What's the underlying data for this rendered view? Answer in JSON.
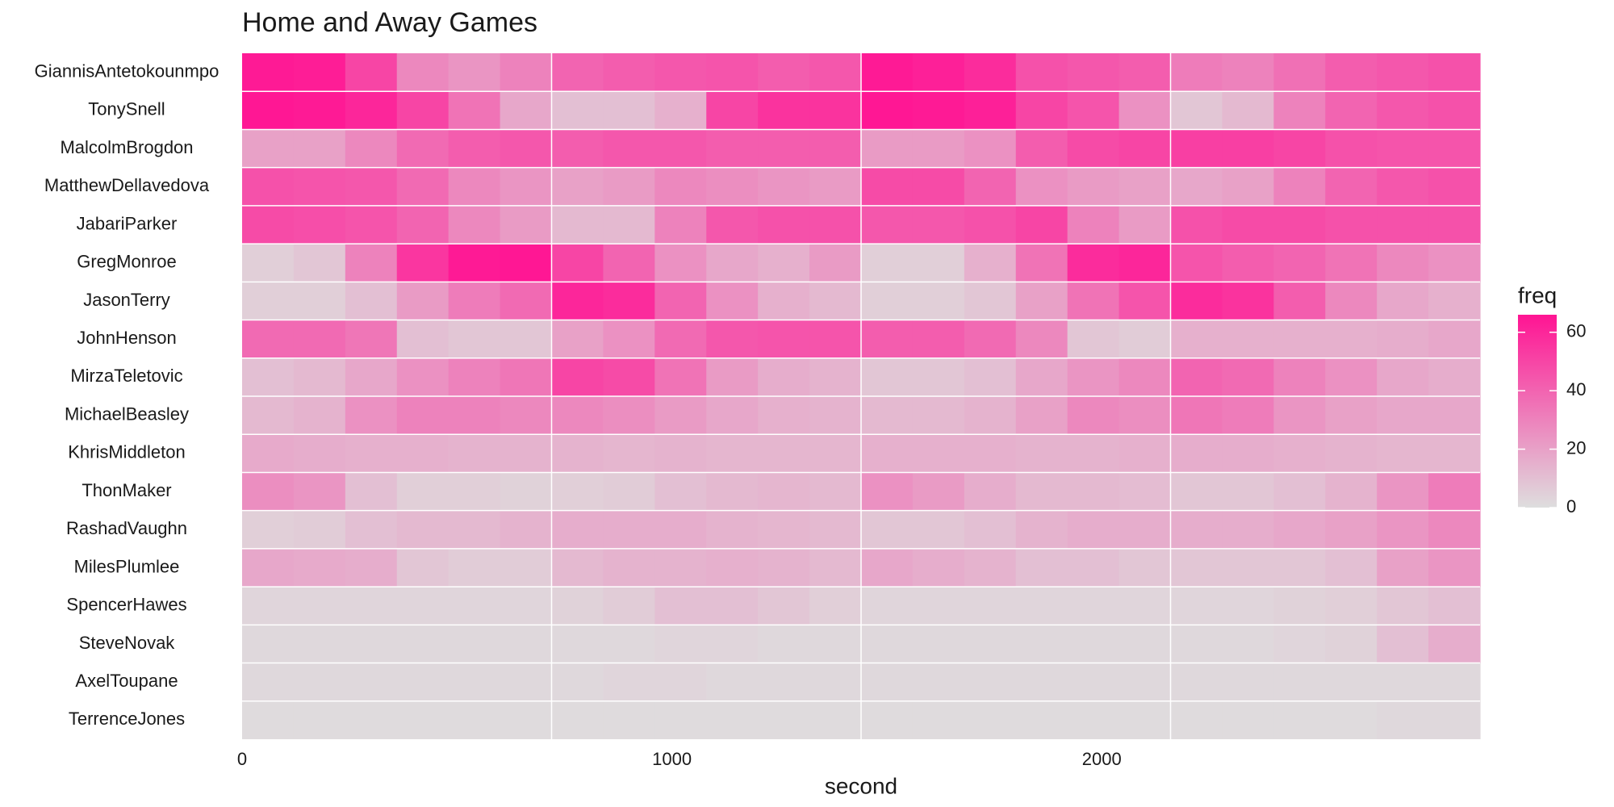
{
  "chart_data": {
    "type": "heatmap",
    "title": "Home and Away Games",
    "xlabel": "second",
    "legend_title": "freq",
    "xlim": [
      0,
      2880
    ],
    "xticks": [
      0,
      1000,
      2000
    ],
    "vlines": [
      720,
      1440,
      2160
    ],
    "zlim": [
      0,
      66
    ],
    "zticks": [
      0,
      20,
      40,
      60
    ],
    "low_color": "#DEDEDE",
    "high_color": "#FF1493",
    "x": [
      0,
      120,
      240,
      360,
      480,
      600,
      720,
      840,
      960,
      1080,
      1200,
      1320,
      1440,
      1560,
      1680,
      1800,
      1920,
      2040,
      2160,
      2280,
      2400,
      2520,
      2640,
      2760
    ],
    "y": [
      "GiannisAntetokounmpo",
      "TonySnell",
      "MalcolmBrogdon",
      "MatthewDellavedova",
      "JabariParker",
      "GregMonroe",
      "JasonTerry",
      "JohnHenson",
      "MirzaTeletovic",
      "MichaelBeasley",
      "KhrisMiddleton",
      "ThonMaker",
      "RashadVaughn",
      "MilesPlumlee",
      "SpencerHawes",
      "SteveNovak",
      "AxelToupane",
      "TerrenceJones"
    ],
    "z": [
      [
        64,
        63,
        50,
        28,
        24,
        30,
        40,
        42,
        44,
        45,
        42,
        44,
        64,
        62,
        58,
        46,
        44,
        42,
        32,
        30,
        36,
        42,
        44,
        46
      ],
      [
        65,
        64,
        60,
        50,
        35,
        18,
        10,
        10,
        15,
        50,
        56,
        56,
        65,
        64,
        62,
        50,
        45,
        25,
        8,
        12,
        30,
        40,
        44,
        46
      ],
      [
        20,
        20,
        28,
        38,
        42,
        44,
        42,
        44,
        44,
        42,
        42,
        42,
        22,
        22,
        25,
        42,
        48,
        50,
        52,
        52,
        50,
        46,
        45,
        45
      ],
      [
        46,
        45,
        44,
        38,
        28,
        24,
        20,
        22,
        28,
        26,
        24,
        22,
        48,
        48,
        40,
        25,
        22,
        20,
        18,
        20,
        30,
        40,
        44,
        46
      ],
      [
        48,
        47,
        45,
        40,
        28,
        22,
        12,
        12,
        30,
        44,
        46,
        46,
        44,
        44,
        46,
        50,
        30,
        22,
        46,
        48,
        48,
        46,
        46,
        46
      ],
      [
        5,
        8,
        30,
        55,
        64,
        65,
        50,
        40,
        25,
        18,
        15,
        22,
        5,
        5,
        15,
        35,
        58,
        60,
        45,
        42,
        40,
        35,
        28,
        25
      ],
      [
        5,
        5,
        10,
        22,
        32,
        38,
        60,
        58,
        40,
        25,
        15,
        12,
        5,
        5,
        8,
        20,
        35,
        45,
        58,
        56,
        42,
        28,
        18,
        15
      ],
      [
        38,
        38,
        34,
        10,
        8,
        8,
        20,
        25,
        38,
        44,
        45,
        45,
        42,
        42,
        38,
        28,
        8,
        6,
        15,
        15,
        15,
        15,
        16,
        18
      ],
      [
        10,
        12,
        18,
        25,
        30,
        34,
        50,
        48,
        35,
        22,
        16,
        14,
        8,
        8,
        10,
        18,
        24,
        28,
        40,
        38,
        30,
        25,
        18,
        16
      ],
      [
        12,
        14,
        25,
        30,
        30,
        28,
        28,
        26,
        22,
        18,
        15,
        14,
        12,
        12,
        14,
        20,
        28,
        26,
        34,
        32,
        24,
        20,
        18,
        18
      ],
      [
        17,
        16,
        15,
        15,
        14,
        14,
        14,
        13,
        14,
        13,
        13,
        13,
        15,
        15,
        15,
        14,
        14,
        15,
        16,
        16,
        15,
        14,
        13,
        13
      ],
      [
        26,
        24,
        10,
        5,
        5,
        4,
        5,
        6,
        10,
        12,
        13,
        12,
        25,
        22,
        16,
        12,
        12,
        11,
        8,
        8,
        10,
        14,
        24,
        32
      ],
      [
        5,
        6,
        10,
        12,
        12,
        14,
        16,
        16,
        16,
        14,
        13,
        12,
        8,
        8,
        10,
        14,
        16,
        16,
        16,
        16,
        18,
        20,
        24,
        28
      ],
      [
        18,
        17,
        16,
        8,
        6,
        6,
        12,
        14,
        14,
        15,
        14,
        12,
        18,
        16,
        14,
        10,
        10,
        8,
        8,
        8,
        8,
        10,
        20,
        24
      ],
      [
        3,
        3,
        3,
        3,
        3,
        3,
        4,
        6,
        10,
        10,
        8,
        5,
        3,
        3,
        3,
        3,
        3,
        3,
        3,
        3,
        4,
        5,
        8,
        10
      ],
      [
        2,
        2,
        2,
        2,
        2,
        2,
        2,
        2,
        3,
        3,
        2,
        2,
        2,
        2,
        2,
        2,
        2,
        2,
        2,
        2,
        3,
        4,
        10,
        16
      ],
      [
        2,
        2,
        2,
        2,
        2,
        2,
        2,
        3,
        3,
        2,
        2,
        2,
        2,
        2,
        2,
        2,
        2,
        2,
        2,
        2,
        2,
        2,
        2,
        2
      ],
      [
        1,
        1,
        1,
        1,
        1,
        1,
        1,
        1,
        1,
        1,
        1,
        1,
        1,
        1,
        1,
        1,
        1,
        1,
        1,
        1,
        1,
        1,
        2,
        2
      ]
    ]
  }
}
